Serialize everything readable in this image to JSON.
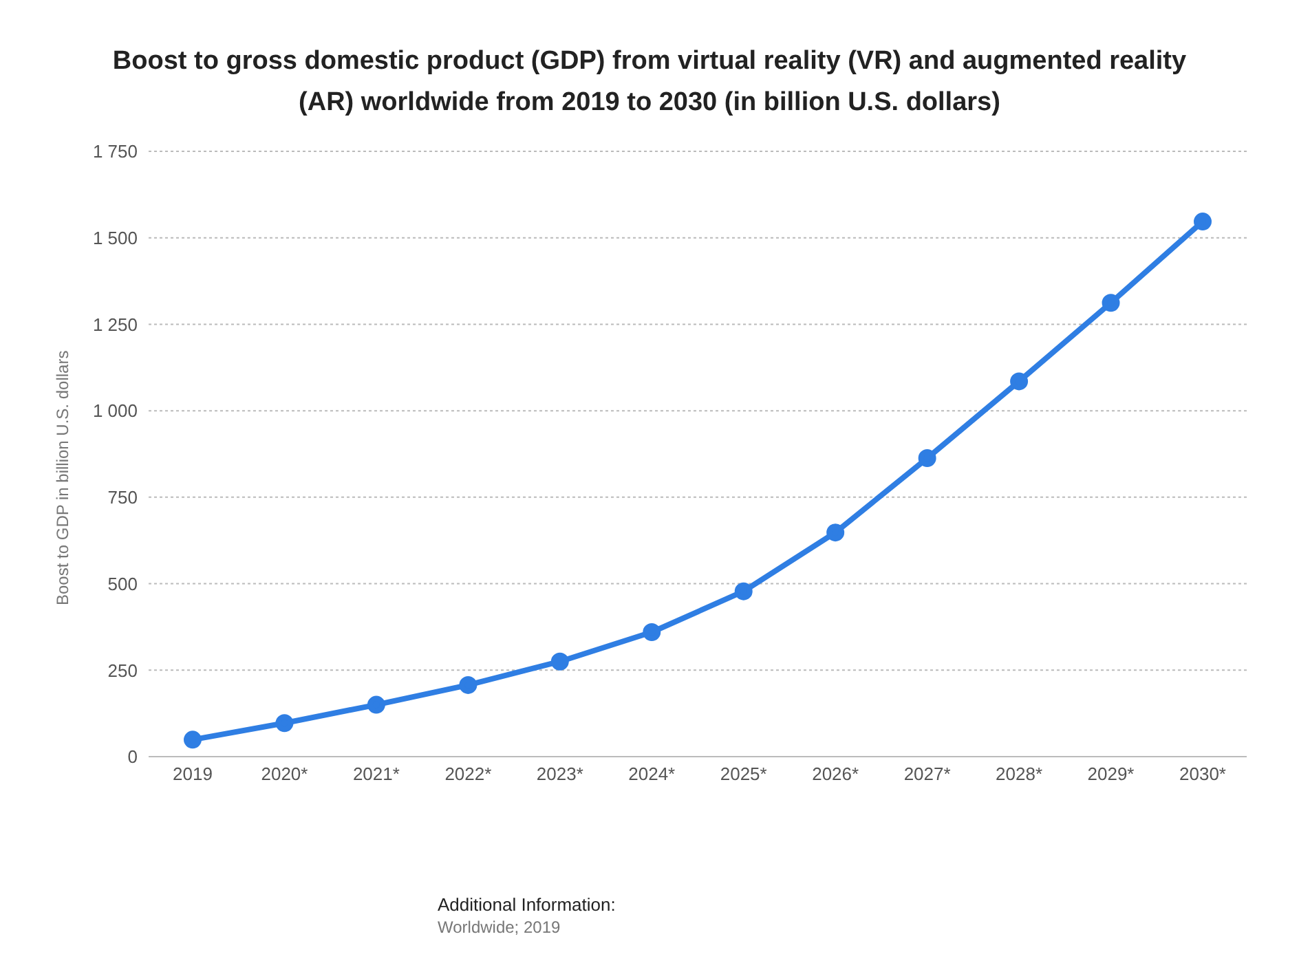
{
  "chart_data": {
    "type": "line",
    "title": "Boost to gross domestic product (GDP) from virtual reality (VR) and augmented reality (AR) worldwide from 2019 to 2030 (in billion U.S. dollars)",
    "ylabel": "Boost to GDP in billion U.S. dollars",
    "categories": [
      "2019",
      "2020*",
      "2021*",
      "2022*",
      "2023*",
      "2024*",
      "2025*",
      "2026*",
      "2027*",
      "2028*",
      "2029*",
      "2030*"
    ],
    "series": [
      {
        "color": "#2f7ee3",
        "values": [
          49,
          97,
          150,
          207,
          275,
          360,
          478,
          648,
          863,
          1085,
          1312,
          1547
        ]
      }
    ],
    "ylim": [
      0,
      1750
    ],
    "yticks": [
      0,
      250,
      500,
      750,
      {
        "value": 1000,
        "label": "1 000"
      },
      {
        "value": 1250,
        "label": "1 250"
      },
      {
        "value": 1500,
        "label": "1 500"
      },
      {
        "value": 1750,
        "label": "1 750"
      }
    ],
    "grid": "y",
    "marker": "circle",
    "line_style": "solid",
    "annotations": [
      "Additional Information:",
      "Worldwide; 2019"
    ]
  }
}
